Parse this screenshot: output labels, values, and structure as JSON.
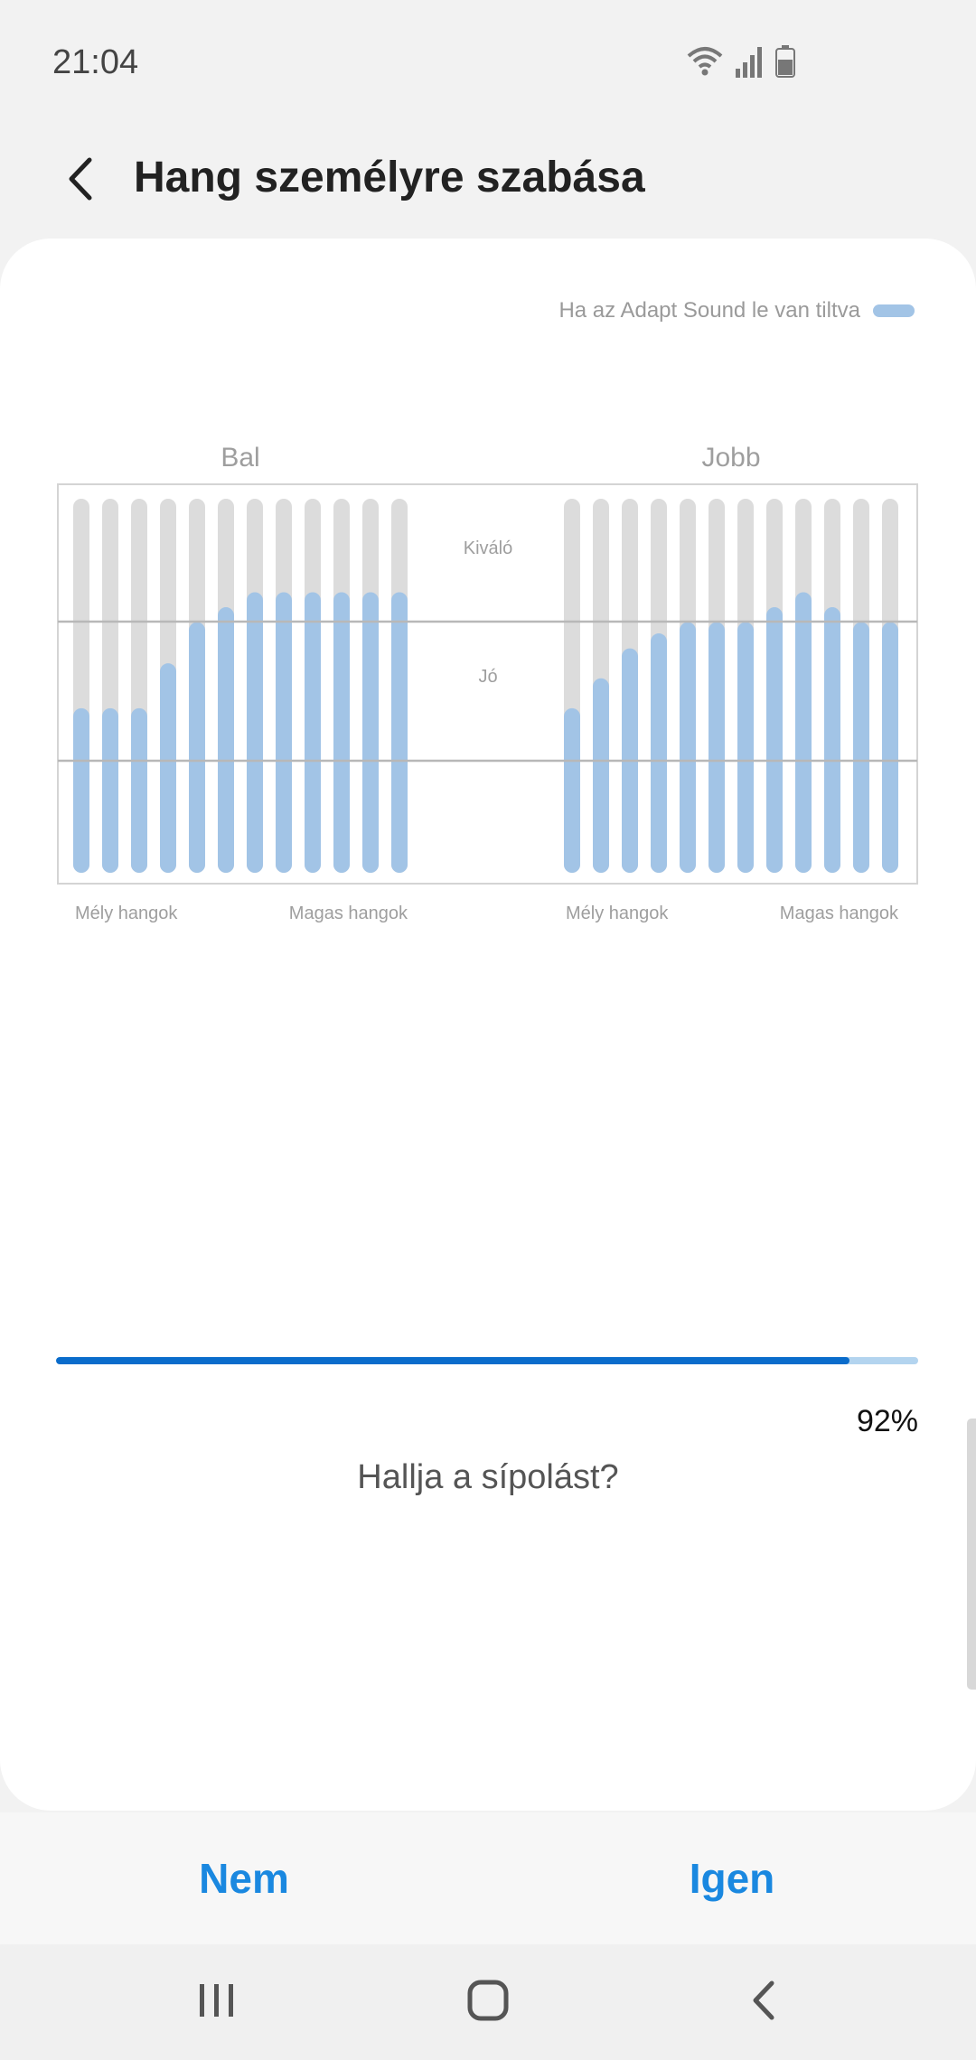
{
  "status_bar": {
    "time": "21:04",
    "icons": [
      "wifi-icon",
      "signal-icon",
      "battery-icon"
    ]
  },
  "header": {
    "title": "Hang személyre szabása",
    "back_icon": "back-arrow-icon"
  },
  "legend": {
    "label": "Ha az Adapt Sound le van tiltva",
    "color": "#a2c4e6"
  },
  "chart_data": [
    {
      "type": "bar",
      "title": "Bal",
      "band_labels": [
        "Kiváló",
        "Jó"
      ],
      "x_start_label": "Mély hangok",
      "x_end_label": "Magas hangok",
      "ylim": [
        0,
        1
      ],
      "values": [
        0.44,
        0.44,
        0.44,
        0.56,
        0.67,
        0.71,
        0.75,
        0.75,
        0.75,
        0.75,
        0.75,
        0.75
      ],
      "bar_color": "#a2c4e6",
      "track_color": "#dcdcdc"
    },
    {
      "type": "bar",
      "title": "Jobb",
      "band_labels": [
        "Kiváló",
        "Jó"
      ],
      "x_start_label": "Mély hangok",
      "x_end_label": "Magas hangok",
      "ylim": [
        0,
        1
      ],
      "values": [
        0.44,
        0.52,
        0.6,
        0.64,
        0.67,
        0.67,
        0.67,
        0.71,
        0.75,
        0.71,
        0.67,
        0.67
      ],
      "bar_color": "#a2c4e6",
      "track_color": "#dcdcdc"
    }
  ],
  "progress": {
    "value": 0.92,
    "label": "92%",
    "fill_color": "#0a6ccb",
    "track_color": "#b3d4ef"
  },
  "question": "Hallja a sípolást?",
  "buttons": {
    "no": "Nem",
    "yes": "Igen"
  },
  "nav": {
    "recents_icon": "recents-icon",
    "home_icon": "home-icon",
    "back_icon": "back-icon"
  }
}
